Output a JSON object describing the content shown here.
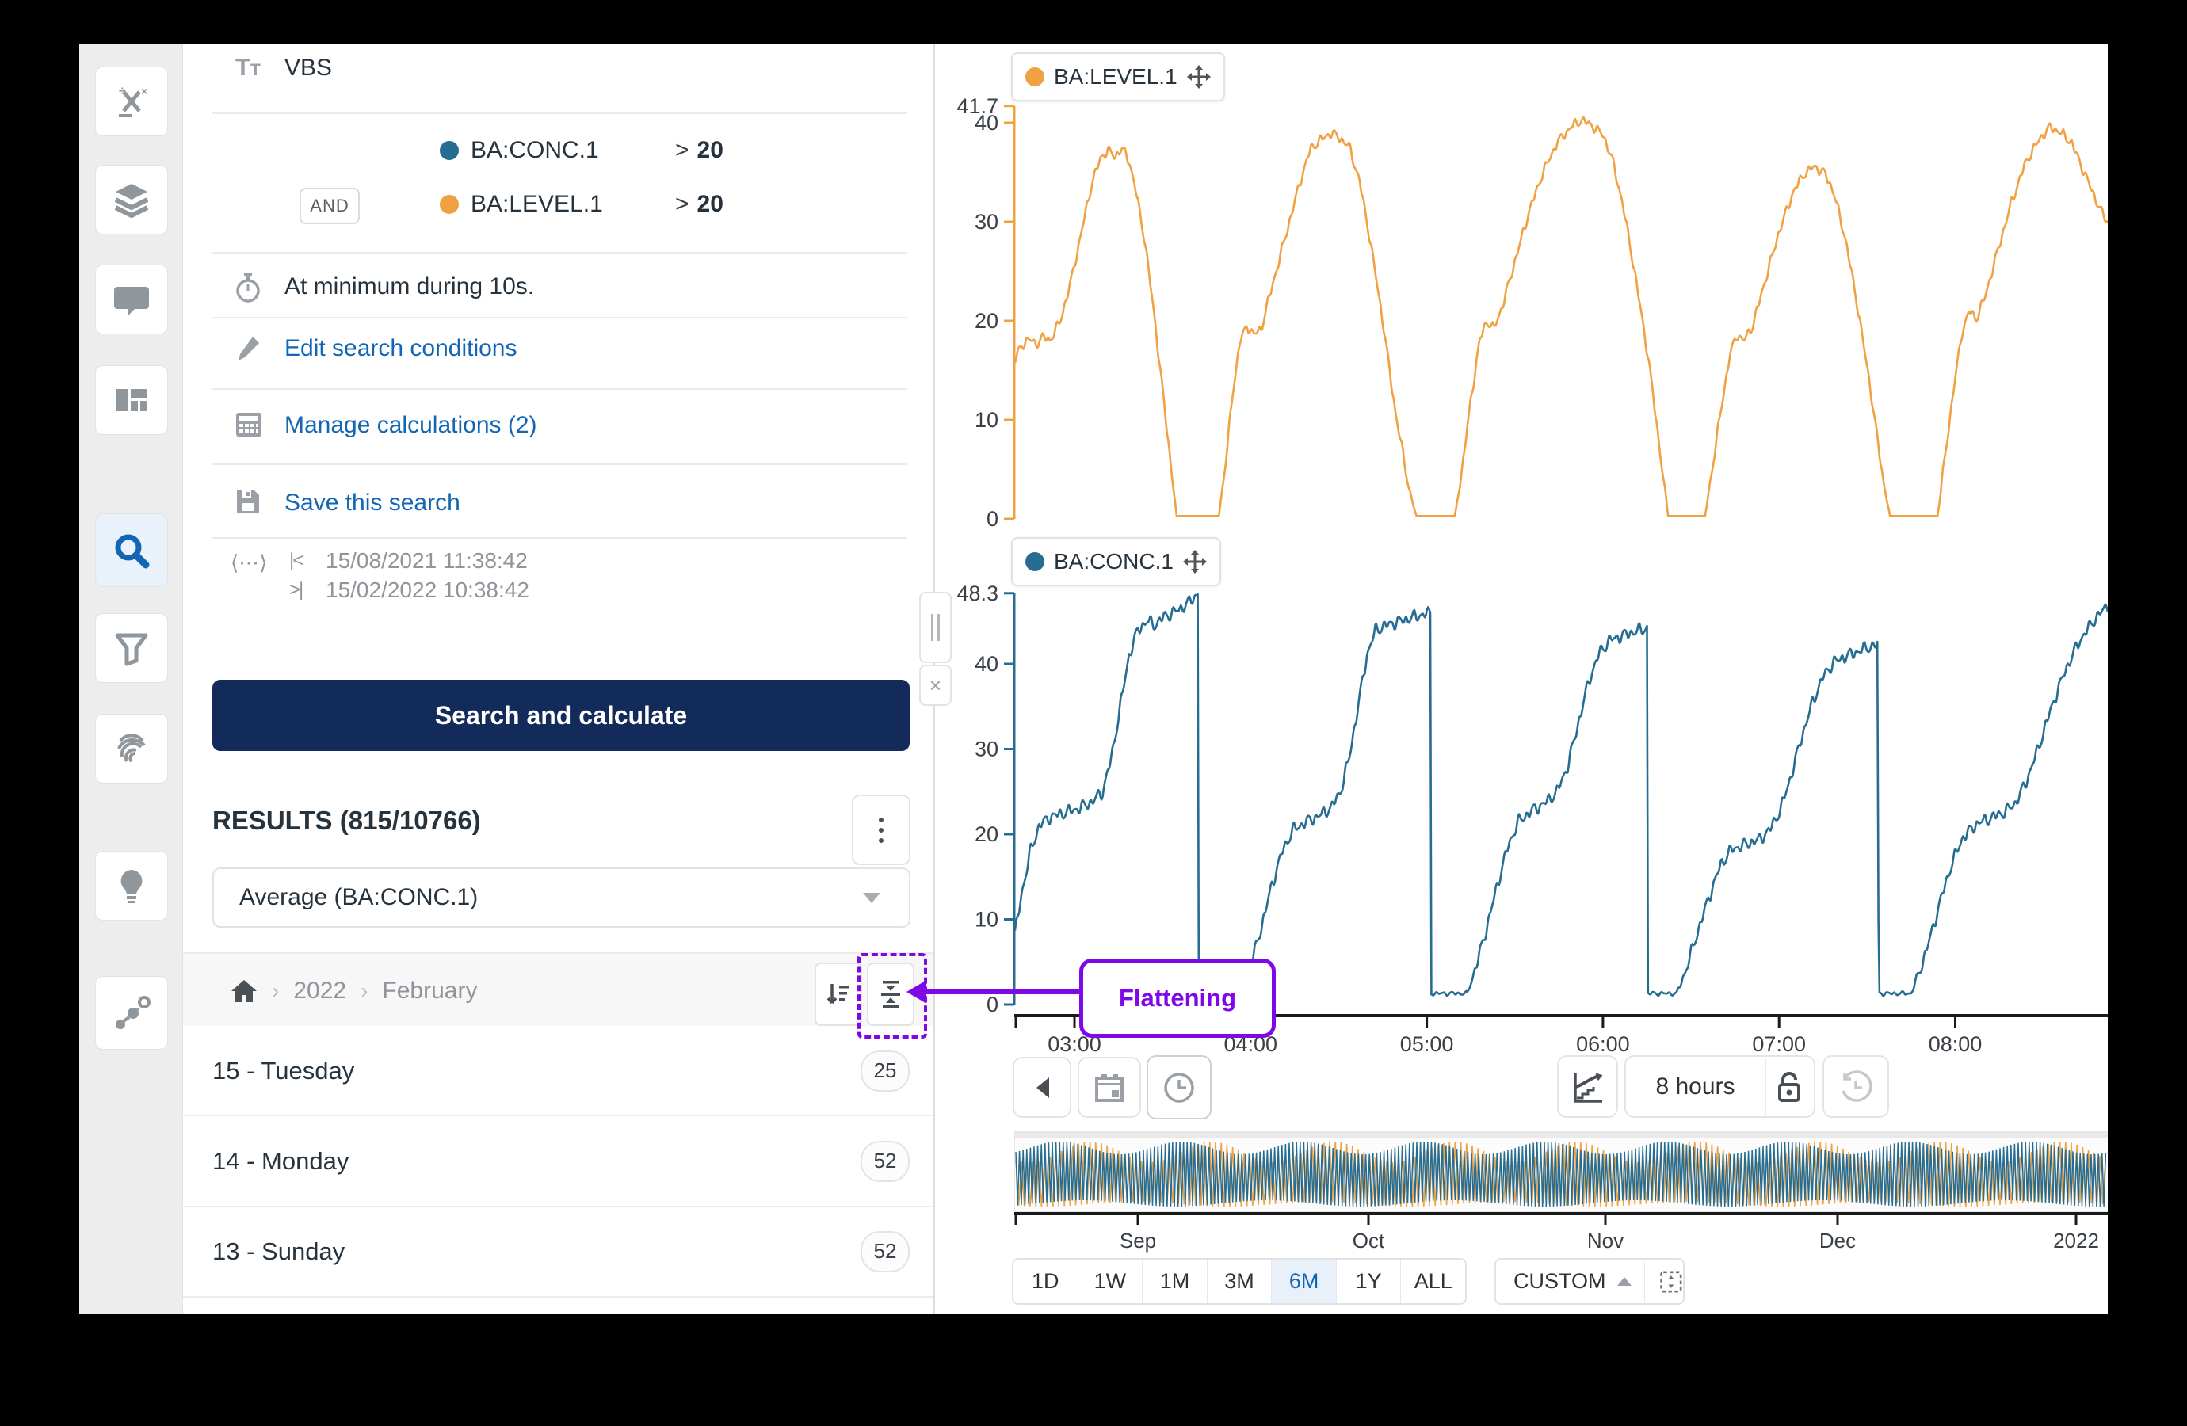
{
  "colors": {
    "accent_blue": "#1266b3",
    "navy": "#132b5a",
    "orange": "#f0a243",
    "series_blue": "#276d92",
    "purple": "#7e09e6",
    "axis_dark": "#1a1a1a",
    "tick_text": "#3b4045"
  },
  "sidebar": {
    "items": [
      {
        "icon": "formula-icon"
      },
      {
        "icon": "layers-icon"
      },
      {
        "icon": "comment-icon"
      },
      {
        "icon": "dashboard-icon"
      },
      {
        "icon": "search-icon",
        "active": true
      },
      {
        "icon": "filter-icon"
      },
      {
        "icon": "fingerprint-icon"
      },
      {
        "icon": "lightbulb-icon"
      },
      {
        "icon": "graph-icon"
      }
    ]
  },
  "search_panel": {
    "query_name": "VBS",
    "conditions": [
      {
        "tag": "BA:CONC.1",
        "operator": ">",
        "value": "20",
        "color": "#276d92"
      },
      {
        "tag": "BA:LEVEL.1",
        "operator": ">",
        "value": "20",
        "color": "#f0a243",
        "conjunction": "AND"
      }
    ],
    "duration": "At minimum during 10s.",
    "links": [
      {
        "icon": "pencil-icon",
        "label": "Edit search conditions"
      },
      {
        "icon": "calculator-icon",
        "label": "Manage calculations (2)"
      },
      {
        "icon": "save-icon",
        "label": "Save this search"
      }
    ],
    "time_range": {
      "icon_span": "⟨⋯⟩",
      "start_glyph": "|<",
      "end_glyph": ">|",
      "start": "15/08/2021 11:38:42",
      "end": "15/02/2022 10:38:42"
    },
    "search_button": "Search and calculate",
    "results_title": "RESULTS (815/10766)",
    "aggregation": "Average (BA:CONC.1)",
    "breadcrumb": {
      "items": [
        "2022",
        "February"
      ]
    },
    "results": [
      {
        "label": "15 - Tuesday",
        "count": "25"
      },
      {
        "label": "14 - Monday",
        "count": "52"
      },
      {
        "label": "13 - Sunday",
        "count": "52"
      }
    ],
    "close_glyph": "×"
  },
  "annotation": {
    "label": "Flattening"
  },
  "timebar": {
    "duration_label": "8 hours"
  },
  "zoom_presets": {
    "options": [
      "1D",
      "1W",
      "1M",
      "3M",
      "6M",
      "1Y",
      "ALL"
    ],
    "selected": "6M",
    "custom_label": "CUSTOM"
  },
  "chart_data": [
    {
      "type": "line",
      "name": "BA:LEVEL.1",
      "color": "#f0a243",
      "position": "top",
      "ylim": [
        0,
        41.7
      ],
      "y_max_label": 41.7,
      "y_ticks": [
        40,
        30,
        20,
        10,
        0
      ],
      "anchors": [
        [
          2.66,
          16
        ],
        [
          2.7,
          17.5
        ],
        [
          2.74,
          18.2
        ],
        [
          2.78,
          17.6
        ],
        [
          2.82,
          18.4
        ],
        [
          2.86,
          18.0
        ],
        [
          2.92,
          20
        ],
        [
          2.98,
          24
        ],
        [
          3.04,
          29
        ],
        [
          3.1,
          34
        ],
        [
          3.15,
          36.5
        ],
        [
          3.19,
          37.2
        ],
        [
          3.23,
          36.6
        ],
        [
          3.27,
          37.4
        ],
        [
          3.31,
          36.2
        ],
        [
          3.35,
          33
        ],
        [
          3.4,
          28
        ],
        [
          3.45,
          21
        ],
        [
          3.5,
          13
        ],
        [
          3.55,
          5
        ],
        [
          3.58,
          0.3
        ],
        [
          3.82,
          0.3
        ],
        [
          3.86,
          6
        ],
        [
          3.9,
          13
        ],
        [
          3.94,
          18
        ],
        [
          3.98,
          19.5
        ],
        [
          4.02,
          18.6
        ],
        [
          4.06,
          19.2
        ],
        [
          4.1,
          22
        ],
        [
          4.16,
          26
        ],
        [
          4.22,
          30
        ],
        [
          4.28,
          34
        ],
        [
          4.34,
          37.4
        ],
        [
          4.4,
          38.3
        ],
        [
          4.46,
          39.0
        ],
        [
          4.51,
          38.4
        ],
        [
          4.56,
          37.6
        ],
        [
          4.62,
          34
        ],
        [
          4.68,
          28
        ],
        [
          4.75,
          20
        ],
        [
          4.82,
          11
        ],
        [
          4.9,
          3
        ],
        [
          4.94,
          0.3
        ],
        [
          5.16,
          0.3
        ],
        [
          5.2,
          5
        ],
        [
          5.25,
          12
        ],
        [
          5.3,
          18
        ],
        [
          5.34,
          20
        ],
        [
          5.38,
          19.2
        ],
        [
          5.43,
          21.5
        ],
        [
          5.5,
          26
        ],
        [
          5.58,
          31
        ],
        [
          5.66,
          35
        ],
        [
          5.74,
          38
        ],
        [
          5.82,
          39.6
        ],
        [
          5.88,
          40.3
        ],
        [
          5.94,
          39.7
        ],
        [
          6.0,
          38.8
        ],
        [
          6.05,
          36.5
        ],
        [
          6.11,
          32
        ],
        [
          6.18,
          25
        ],
        [
          6.26,
          16
        ],
        [
          6.33,
          6
        ],
        [
          6.37,
          0.3
        ],
        [
          6.58,
          0.3
        ],
        [
          6.62,
          5
        ],
        [
          6.67,
          11
        ],
        [
          6.72,
          16.5
        ],
        [
          6.76,
          18.6
        ],
        [
          6.8,
          18.0
        ],
        [
          6.85,
          19.5
        ],
        [
          6.92,
          24
        ],
        [
          7.0,
          29
        ],
        [
          7.08,
          33
        ],
        [
          7.14,
          34.8
        ],
        [
          7.2,
          35.6
        ],
        [
          7.26,
          34.9
        ],
        [
          7.31,
          33
        ],
        [
          7.38,
          28
        ],
        [
          7.45,
          21
        ],
        [
          7.52,
          13
        ],
        [
          7.59,
          4
        ],
        [
          7.63,
          0.3
        ],
        [
          7.9,
          0.3
        ],
        [
          7.94,
          6
        ],
        [
          7.99,
          13
        ],
        [
          8.04,
          19
        ],
        [
          8.08,
          21
        ],
        [
          8.12,
          20.2
        ],
        [
          8.17,
          22.5
        ],
        [
          8.24,
          27
        ],
        [
          8.32,
          32
        ],
        [
          8.4,
          36
        ],
        [
          8.48,
          38.4
        ],
        [
          8.54,
          39.6
        ],
        [
          8.6,
          39.0
        ],
        [
          8.66,
          38.0
        ],
        [
          8.72,
          35.5
        ],
        [
          8.78,
          33
        ],
        [
          8.83,
          31
        ],
        [
          8.88,
          29.5
        ]
      ]
    },
    {
      "type": "line",
      "name": "BA:CONC.1",
      "color": "#276d92",
      "position": "bottom",
      "ylim": [
        0,
        48.3
      ],
      "y_max_label": 48.3,
      "y_ticks": [
        40,
        30,
        20,
        10,
        0
      ],
      "anchors": [
        [
          2.66,
          8
        ],
        [
          2.7,
          13
        ],
        [
          2.75,
          18
        ],
        [
          2.8,
          21
        ],
        [
          2.86,
          22
        ],
        [
          2.94,
          22.5
        ],
        [
          3.02,
          23
        ],
        [
          3.1,
          23.8
        ],
        [
          3.16,
          25
        ],
        [
          3.21,
          29
        ],
        [
          3.26,
          35
        ],
        [
          3.31,
          41
        ],
        [
          3.36,
          44
        ],
        [
          3.41,
          45
        ],
        [
          3.46,
          44.6
        ],
        [
          3.51,
          45.6
        ],
        [
          3.56,
          46
        ],
        [
          3.61,
          46.6
        ],
        [
          3.66,
          47.4
        ],
        [
          3.7,
          48.3
        ],
        [
          3.705,
          1.3
        ],
        [
          3.95,
          1.3
        ],
        [
          4.0,
          4.5
        ],
        [
          4.06,
          9
        ],
        [
          4.12,
          14
        ],
        [
          4.18,
          18
        ],
        [
          4.24,
          20.5
        ],
        [
          4.32,
          21.5
        ],
        [
          4.4,
          22.3
        ],
        [
          4.46,
          23.2
        ],
        [
          4.51,
          25
        ],
        [
          4.56,
          29
        ],
        [
          4.61,
          35
        ],
        [
          4.66,
          41
        ],
        [
          4.71,
          44
        ],
        [
          4.78,
          44.6
        ],
        [
          4.86,
          45.1
        ],
        [
          4.94,
          45.6
        ],
        [
          5.02,
          46
        ],
        [
          5.025,
          1.3
        ],
        [
          5.23,
          1.3
        ],
        [
          5.28,
          4.5
        ],
        [
          5.34,
          9
        ],
        [
          5.4,
          14
        ],
        [
          5.46,
          18.5
        ],
        [
          5.52,
          21.5
        ],
        [
          5.6,
          22.8
        ],
        [
          5.68,
          23.8
        ],
        [
          5.74,
          25
        ],
        [
          5.8,
          28
        ],
        [
          5.86,
          33
        ],
        [
          5.92,
          38
        ],
        [
          5.98,
          41.3
        ],
        [
          6.04,
          42.8
        ],
        [
          6.12,
          43.4
        ],
        [
          6.2,
          43.9
        ],
        [
          6.25,
          44.2
        ],
        [
          6.255,
          1.3
        ],
        [
          6.42,
          1.3
        ],
        [
          6.47,
          4
        ],
        [
          6.53,
          8
        ],
        [
          6.6,
          12.5
        ],
        [
          6.67,
          16.5
        ],
        [
          6.73,
          18.2
        ],
        [
          6.81,
          18.8
        ],
        [
          6.89,
          19.4
        ],
        [
          6.95,
          20.6
        ],
        [
          7.01,
          23
        ],
        [
          7.07,
          27
        ],
        [
          7.13,
          31.5
        ],
        [
          7.19,
          35.5
        ],
        [
          7.25,
          38.5
        ],
        [
          7.31,
          40.2
        ],
        [
          7.38,
          40.9
        ],
        [
          7.44,
          41.4
        ],
        [
          7.5,
          41.9
        ],
        [
          7.56,
          42.3
        ],
        [
          7.565,
          1.3
        ],
        [
          7.75,
          1.3
        ],
        [
          7.8,
          4
        ],
        [
          7.86,
          8
        ],
        [
          7.92,
          12.5
        ],
        [
          7.98,
          16.5
        ],
        [
          8.04,
          19.5
        ],
        [
          8.12,
          21.2
        ],
        [
          8.2,
          21.9
        ],
        [
          8.28,
          22.6
        ],
        [
          8.34,
          23.6
        ],
        [
          8.4,
          26
        ],
        [
          8.47,
          30
        ],
        [
          8.54,
          34.5
        ],
        [
          8.62,
          39
        ],
        [
          8.7,
          42.5
        ],
        [
          8.79,
          45.2
        ],
        [
          8.88,
          47.2
        ]
      ]
    }
  ],
  "x_axis": {
    "ticks": [
      {
        "t": 3,
        "label": "03:00"
      },
      {
        "t": 4,
        "label": "04:00"
      },
      {
        "t": 5,
        "label": "05:00"
      },
      {
        "t": 6,
        "label": "06:00"
      },
      {
        "t": 7,
        "label": "07:00"
      },
      {
        "t": 8,
        "label": "08:00"
      }
    ]
  },
  "overview_axis": {
    "labels": [
      "Sep",
      "Oct",
      "Nov",
      "Dec",
      "2022"
    ]
  }
}
